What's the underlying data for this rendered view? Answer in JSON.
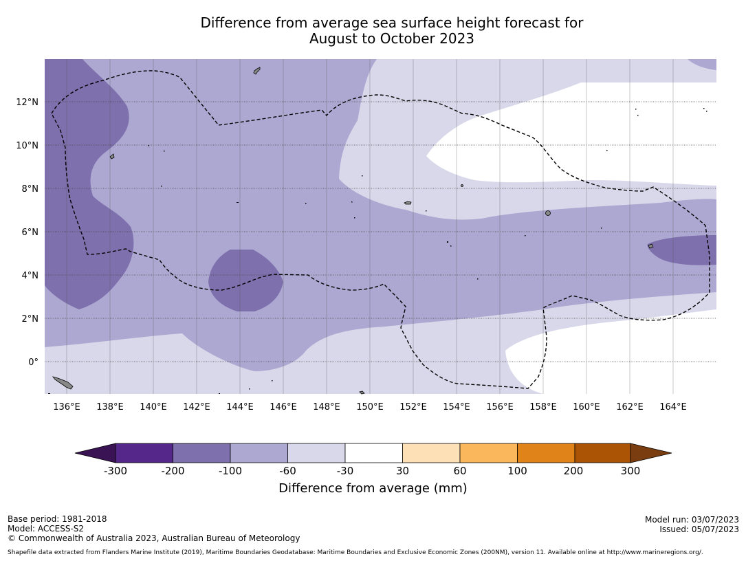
{
  "title": {
    "line1": "Difference from average sea surface height forecast for",
    "line2": "August to October 2023"
  },
  "map": {
    "lon_labels": [
      "136°E",
      "138°E",
      "140°E",
      "142°E",
      "144°E",
      "146°E",
      "148°E",
      "150°E",
      "152°E",
      "154°E",
      "156°E",
      "158°E",
      "160°E",
      "162°E",
      "164°E"
    ],
    "lat_labels": [
      "12°N",
      "10°N",
      "8°N",
      "6°N",
      "4°N",
      "2°N",
      "0°"
    ],
    "lon_range": [
      134.9,
      166.0
    ],
    "lat_range": [
      -1.5,
      13.9
    ]
  },
  "colorbar": {
    "title": "Difference from average (mm)",
    "tick_labels": [
      "-300",
      "-200",
      "-100",
      "-60",
      "-30",
      "30",
      "60",
      "100",
      "200",
      "300"
    ],
    "colors": [
      "#3a1354",
      "#55278a",
      "#7e6fad",
      "#ada8d1",
      "#d8d8ea",
      "#ffffff",
      "#fde0b6",
      "#fbb75c",
      "#e0841a",
      "#ac5405",
      "#7a3d0f"
    ]
  },
  "footer": {
    "base_period": "Base period: 1981-2018",
    "model": "Model: ACCESS-S2",
    "copyright": "© Commonwealth of Australia 2023, Australian Bureau of Meteorology",
    "model_run": "Model run: 03/07/2023",
    "issued": "Issued: 05/07/2023",
    "shapefile": "Shapefile data extracted from Flanders Marine Institute (2019), Maritime Boundaries Geodatabase: Maritime Boundaries and Exclusive Economic Zones (200NM), version 11. Available online at http://www.marineregions.org/."
  }
}
